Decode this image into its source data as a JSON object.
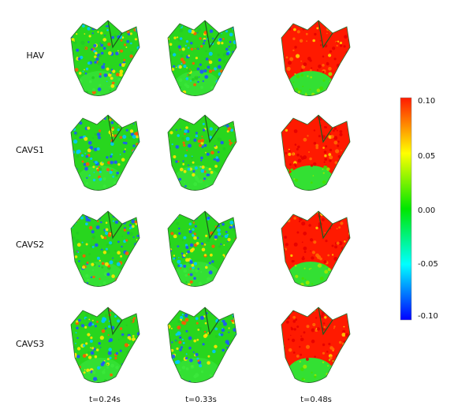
{
  "rows": [
    "HAV",
    "CAVS1",
    "CAVS2",
    "CAVS3"
  ],
  "columns": [
    "t=0.24s",
    "t=0.33s",
    "t=0.48s"
  ],
  "colorbar": {
    "ticks": [
      "0.10",
      "0.05",
      "0.00",
      "-0.05",
      "-0.10"
    ],
    "colors": [
      "#ff1a00",
      "#ffff00",
      "#00e600",
      "#00ffff",
      "#0000ff"
    ]
  },
  "panels": [
    [
      "mixed",
      "mixed",
      "high"
    ],
    [
      "mixed",
      "mixed",
      "high"
    ],
    [
      "mixed",
      "mixed",
      "high"
    ],
    [
      "mixed",
      "mixed",
      "high"
    ]
  ]
}
